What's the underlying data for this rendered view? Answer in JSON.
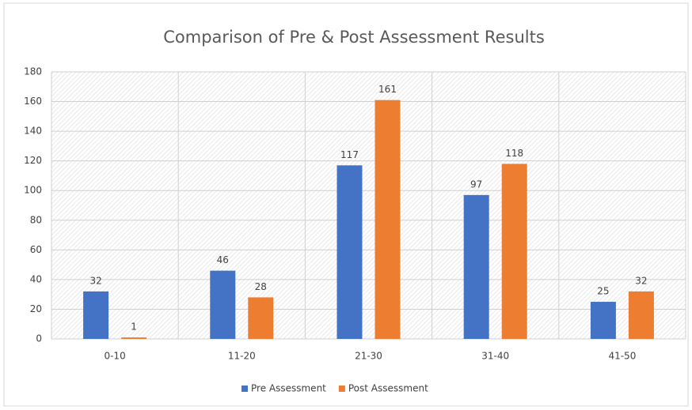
{
  "chart_data": {
    "type": "bar",
    "title": "Comparison of Pre & Post Assessment Results",
    "categories": [
      "0-10",
      "11-20",
      "21-30",
      "31-40",
      "41-50"
    ],
    "series": [
      {
        "name": "Pre Assessment",
        "color": "#4472c4",
        "values": [
          32,
          46,
          117,
          97,
          25
        ]
      },
      {
        "name": "Post Assessment",
        "color": "#ed7d31",
        "values": [
          1,
          28,
          161,
          118,
          32
        ]
      }
    ],
    "ylim": [
      0,
      180
    ],
    "yticks": [
      0,
      20,
      40,
      60,
      80,
      100,
      120,
      140,
      160,
      180
    ],
    "grid": true,
    "legend": "bottom"
  }
}
